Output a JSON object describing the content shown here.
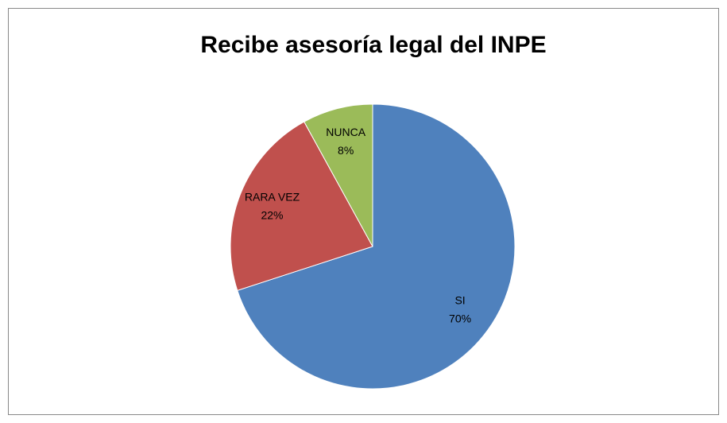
{
  "chart_data": {
    "type": "pie",
    "title": "Recibe asesoría legal del INPE",
    "categories": [
      "SI",
      "RARA VEZ",
      "NUNCA"
    ],
    "values": [
      70,
      22,
      8
    ],
    "value_labels": [
      "70%",
      "22%",
      "8%"
    ],
    "colors": [
      "#4f81bd",
      "#c0504d",
      "#9bbb59"
    ]
  }
}
